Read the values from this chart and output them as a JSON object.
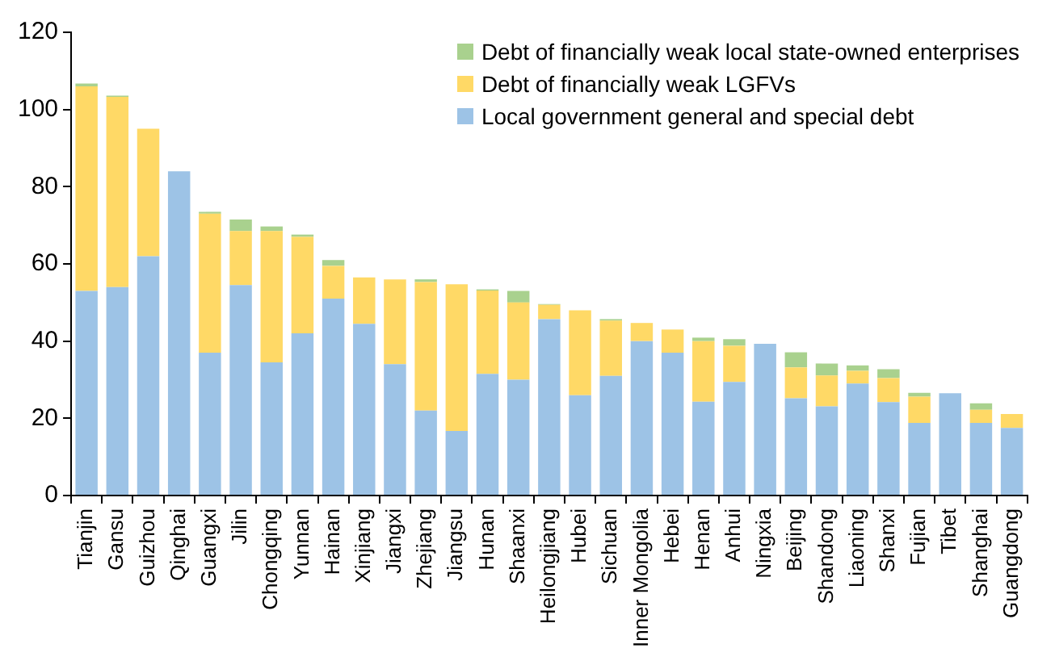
{
  "chart_data": {
    "type": "bar",
    "stacked": true,
    "categories": [
      "Tianjin",
      "Gansu",
      "Guizhou",
      "Qinghai",
      "Guangxi",
      "Jilin",
      "Chongqing",
      "Yunnan",
      "Hainan",
      "Xinjiang",
      "Jiangxi",
      "Zhejiang",
      "Jiangsu",
      "Hunan",
      "Shaanxi",
      "Heilongjiang",
      "Hubei",
      "Sichuan",
      "Inner Mongolia",
      "Hebei",
      "Henan",
      "Anhui",
      "Ningxia",
      "Beijing",
      "Shandong",
      "Liaoning",
      "Shanxi",
      "Fujian",
      "Tibet",
      "Shanghai",
      "Guangdong"
    ],
    "series": [
      {
        "name": "Local government general and special debt",
        "color": "#9dc3e6",
        "values": [
          53,
          54,
          62,
          84,
          37,
          54.5,
          34.5,
          42,
          51,
          44.5,
          34,
          22,
          16.7,
          31.5,
          30,
          45.7,
          26,
          31,
          40,
          37,
          24.3,
          29.4,
          39.3,
          25.2,
          23.1,
          29,
          24.2,
          18.8,
          26.5,
          18.8,
          17.5
        ]
      },
      {
        "name": "Debt of financially weak LGFVs",
        "color": "#ffd966",
        "values": [
          53,
          49.3,
          33,
          0,
          36,
          14,
          34,
          25,
          8.5,
          12,
          22,
          33.3,
          38,
          21.6,
          20,
          3.7,
          22,
          14.3,
          4.7,
          6,
          15.7,
          9.4,
          0,
          8,
          8,
          3.3,
          6.2,
          6.8,
          0,
          3.4,
          3.6
        ]
      },
      {
        "name": "Debt of financially weak local state-owned enterprises",
        "color": "#a9d18e",
        "values": [
          0.7,
          0.3,
          0,
          0,
          0.5,
          3,
          1.2,
          0.6,
          1.5,
          0,
          0,
          0.7,
          0,
          0.3,
          3,
          0.2,
          0,
          0.4,
          0,
          0,
          0.9,
          1.7,
          0,
          3.9,
          3.1,
          1.4,
          2.3,
          1,
          0,
          1.7,
          0
        ]
      }
    ],
    "ylim": [
      0,
      120
    ],
    "yticks": [
      0,
      20,
      40,
      60,
      80,
      100,
      120
    ],
    "grid": false,
    "legend": "top right"
  }
}
